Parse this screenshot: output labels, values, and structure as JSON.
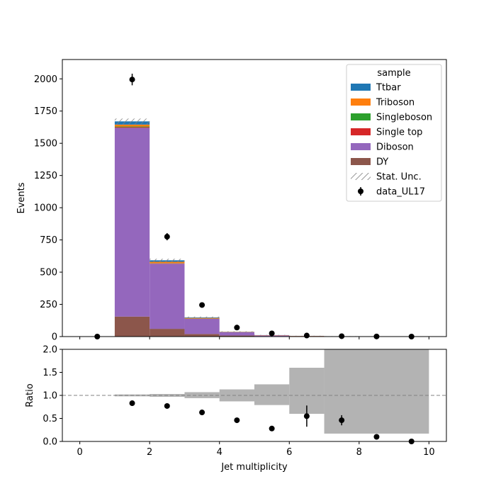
{
  "chart_data": [
    {
      "type": "bar",
      "stacked": true,
      "xlabel": "",
      "ylabel": "Events",
      "xlim": [
        -0.5,
        10.5
      ],
      "ylim": [
        0,
        2150
      ],
      "yticks": [
        0,
        250,
        500,
        750,
        1000,
        1250,
        1500,
        1750,
        2000
      ],
      "bin_edges": [
        0,
        1,
        2,
        3,
        4,
        5,
        6,
        7,
        8,
        9,
        10
      ],
      "legend": {
        "title": "sample",
        "placement": "top-right",
        "stat_label": "Stat. Unc.",
        "data_label": "data_UL17"
      },
      "series": [
        {
          "name": "DY",
          "color": "#8c564b",
          "values": [
            0,
            155,
            60,
            20,
            8,
            3,
            1,
            0.5,
            0,
            0
          ]
        },
        {
          "name": "Diboson",
          "color": "#9467bd",
          "values": [
            0,
            1465,
            505,
            118,
            26,
            6,
            3,
            1,
            0,
            0
          ]
        },
        {
          "name": "Single top",
          "color": "#d62728",
          "values": [
            0,
            5,
            3,
            1,
            0.5,
            0.3,
            0.2,
            0.2,
            0,
            0
          ]
        },
        {
          "name": "Singleboson",
          "color": "#2ca02c",
          "values": [
            0,
            5,
            2,
            1,
            0.5,
            0.2,
            0.2,
            0.1,
            0,
            0
          ]
        },
        {
          "name": "Triboson",
          "color": "#ff7f0e",
          "values": [
            0,
            15,
            10,
            5,
            2,
            1.5,
            1,
            1,
            0,
            0
          ]
        },
        {
          "name": "Ttbar",
          "color": "#1f77b4",
          "values": [
            0,
            25,
            12,
            4,
            1,
            0.5,
            0.2,
            0.1,
            0,
            0
          ]
        }
      ],
      "stat_unc": [
        0,
        22,
        12,
        6,
        3,
        1.5,
        0.8,
        0.5,
        0,
        0
      ],
      "data": {
        "x": [
          0.5,
          1.5,
          2.5,
          3.5,
          4.5,
          5.5,
          6.5,
          7.5,
          8.5,
          9.5
        ],
        "y": [
          0,
          1995,
          775,
          245,
          70,
          25,
          8,
          3,
          1,
          0
        ],
        "err": [
          0,
          45,
          28,
          16,
          8,
          5,
          3,
          2,
          1,
          0
        ]
      }
    },
    {
      "type": "scatter",
      "xlabel": "Jet multiplicity",
      "ylabel": "Ratio",
      "xlim": [
        -0.5,
        10.5
      ],
      "ylim": [
        0,
        2
      ],
      "xticks": [
        0,
        2,
        4,
        6,
        8,
        10
      ],
      "yticks": [
        "0.0",
        "0.5",
        "1.0",
        "1.5",
        "2.0"
      ],
      "reference_line": 1.0,
      "unc_band": [
        {
          "x0": 1,
          "x1": 2,
          "lo": 0.98,
          "hi": 1.02
        },
        {
          "x0": 2,
          "x1": 3,
          "lo": 0.97,
          "hi": 1.03
        },
        {
          "x0": 3,
          "x1": 4,
          "lo": 0.94,
          "hi": 1.07
        },
        {
          "x0": 4,
          "x1": 5,
          "lo": 0.87,
          "hi": 1.13
        },
        {
          "x0": 5,
          "x1": 6,
          "lo": 0.79,
          "hi": 1.24
        },
        {
          "x0": 6,
          "x1": 7,
          "lo": 0.6,
          "hi": 1.6
        },
        {
          "x0": 7,
          "x1": 10,
          "lo": 0.17,
          "hi": 2.05
        }
      ],
      "points": {
        "x": [
          1.5,
          2.5,
          3.5,
          4.5,
          5.5,
          6.5,
          7.5,
          8.5,
          9.5
        ],
        "y": [
          0.83,
          0.77,
          0.63,
          0.46,
          0.28,
          0.55,
          0.46,
          0.1,
          0.0
        ],
        "err": [
          0.02,
          0.03,
          0.04,
          0.05,
          0.05,
          0.23,
          0.11,
          0.0,
          0.0
        ]
      }
    }
  ]
}
